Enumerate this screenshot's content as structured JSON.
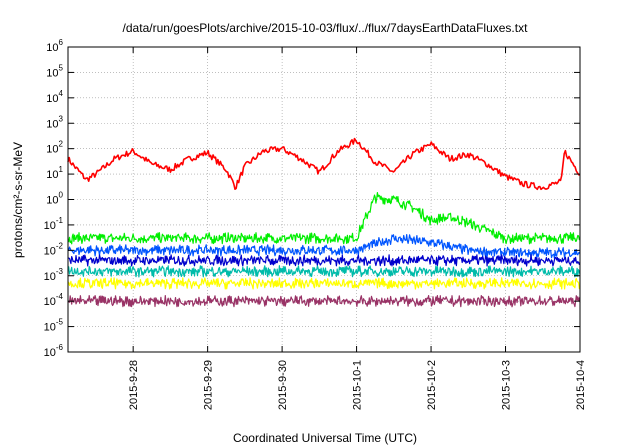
{
  "chart_data": {
    "type": "line",
    "title": "/data/run/goesPlots/archive/2015-10-03/flux/../flux/7daysEarthDataFluxes.txt",
    "xlabel": "Coordinated Universal Time (UTC)",
    "ylabel": "protons/cm²-s-sr-MeV",
    "yscale": "log",
    "grid": true,
    "legend": "none",
    "xlim": [
      "2015-09-27 03:00",
      "2015-10-04 00:00"
    ],
    "ylim": [
      1e-06,
      1000000.0
    ],
    "x_ticks": [
      "2015-9-28",
      "2015-9-29",
      "2015-9-30",
      "2015-10-1",
      "2015-10-2",
      "2015-10-3",
      "2015-10-4"
    ],
    "y_ticks": [
      {
        "value": 1e-06,
        "base": "10",
        "exp": "-6"
      },
      {
        "value": 1e-05,
        "base": "10",
        "exp": "-5"
      },
      {
        "value": 0.0001,
        "base": "10",
        "exp": "-4"
      },
      {
        "value": 0.001,
        "base": "10",
        "exp": "-3"
      },
      {
        "value": 0.01,
        "base": "10",
        "exp": "-2"
      },
      {
        "value": 0.1,
        "base": "10",
        "exp": "-1"
      },
      {
        "value": 1,
        "base": "10",
        "exp": "0"
      },
      {
        "value": 10,
        "base": "10",
        "exp": "1"
      },
      {
        "value": 100,
        "base": "10",
        "exp": "2"
      },
      {
        "value": 1000,
        "base": "10",
        "exp": "3"
      },
      {
        "value": 10000,
        "base": "10",
        "exp": "4"
      },
      {
        "value": 100000,
        "base": "10",
        "exp": "5"
      },
      {
        "value": 1000000,
        "base": "10",
        "exp": "6"
      }
    ],
    "series": [
      {
        "color": "#ff0000",
        "x": [
          "2015-09-27 03:00",
          "2015-09-27 06:00",
          "2015-09-27 09:00",
          "2015-09-27 12:00",
          "2015-09-27 18:00",
          "2015-09-28 00:00",
          "2015-09-28 06:00",
          "2015-09-28 12:00",
          "2015-09-28 18:00",
          "2015-09-29 00:00",
          "2015-09-29 06:00",
          "2015-09-29 09:00",
          "2015-09-29 12:00",
          "2015-09-29 18:00",
          "2015-09-30 00:00",
          "2015-09-30 06:00",
          "2015-09-30 12:00",
          "2015-09-30 18:00",
          "2015-10-01 00:00",
          "2015-10-01 06:00",
          "2015-10-01 12:00",
          "2015-10-01 18:00",
          "2015-10-02 00:00",
          "2015-10-02 06:00",
          "2015-10-02 12:00",
          "2015-10-02 18:00",
          "2015-10-03 00:00",
          "2015-10-03 06:00",
          "2015-10-03 12:00",
          "2015-10-03 18:00",
          "2015-10-03 19:00",
          "2015-10-04 00:00"
        ],
        "y": [
          40,
          15,
          6,
          10,
          40,
          80,
          25,
          15,
          40,
          70,
          15,
          3,
          20,
          80,
          100,
          40,
          12,
          80,
          220,
          30,
          12,
          60,
          150,
          40,
          60,
          25,
          8,
          4,
          3,
          5,
          80,
          10
        ]
      },
      {
        "color": "#00ee00",
        "x": [
          "2015-09-27 03:00",
          "2015-10-01 00:00",
          "2015-10-01 03:00",
          "2015-10-01 06:00",
          "2015-10-01 12:00",
          "2015-10-01 18:00",
          "2015-10-02 00:00",
          "2015-10-02 06:00",
          "2015-10-02 12:00",
          "2015-10-02 18:00",
          "2015-10-03 00:00",
          "2015-10-04 00:00"
        ],
        "y": [
          0.03,
          0.03,
          0.2,
          1.2,
          1.0,
          0.5,
          0.15,
          0.2,
          0.12,
          0.06,
          0.03,
          0.03
        ]
      },
      {
        "color": "#0055ff",
        "x": [
          "2015-09-27 03:00",
          "2015-10-01 00:00",
          "2015-10-01 12:00",
          "2015-10-02 00:00",
          "2015-10-02 12:00",
          "2015-10-03 00:00",
          "2015-10-04 00:00"
        ],
        "y": [
          0.01,
          0.01,
          0.03,
          0.02,
          0.01,
          0.008,
          0.008
        ]
      },
      {
        "color": "#0000cc",
        "x": [
          "2015-09-27 03:00",
          "2015-10-04 00:00"
        ],
        "y": [
          0.004,
          0.004
        ]
      },
      {
        "color": "#00bbaa",
        "x": [
          "2015-09-27 03:00",
          "2015-10-04 00:00"
        ],
        "y": [
          0.0015,
          0.0015
        ]
      },
      {
        "color": "#ffff00",
        "x": [
          "2015-09-27 03:00",
          "2015-10-04 00:00"
        ],
        "y": [
          0.0005,
          0.0005
        ]
      },
      {
        "color": "#993366",
        "x": [
          "2015-09-27 03:00",
          "2015-10-04 00:00"
        ],
        "y": [
          0.0001,
          0.0001
        ]
      }
    ]
  }
}
